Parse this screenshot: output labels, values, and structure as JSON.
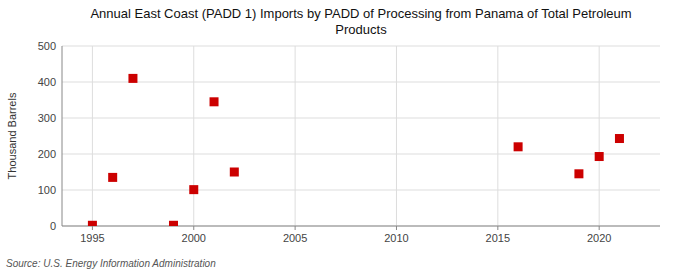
{
  "chart_data": {
    "type": "scatter",
    "title": "Annual East Coast (PADD 1) Imports by PADD of Processing from Panama of Total Petroleum\nProducts",
    "ylabel": "Thousand Barrels",
    "source": "Source: U.S. Energy Information Administration",
    "x": [
      1995,
      1996,
      1997,
      1999,
      2000,
      2001,
      2002,
      2016,
      2019,
      2020,
      2021
    ],
    "values": [
      2,
      135,
      410,
      2,
      101,
      345,
      150,
      220,
      145,
      193,
      243
    ],
    "color": "#cc0000",
    "marker": "square",
    "xlim": [
      1993.5,
      2023
    ],
    "ylim": [
      0,
      500
    ],
    "xticks": [
      1995,
      2000,
      2005,
      2010,
      2015,
      2020
    ],
    "yticks": [
      0,
      100,
      200,
      300,
      400,
      500
    ],
    "grid": true
  }
}
